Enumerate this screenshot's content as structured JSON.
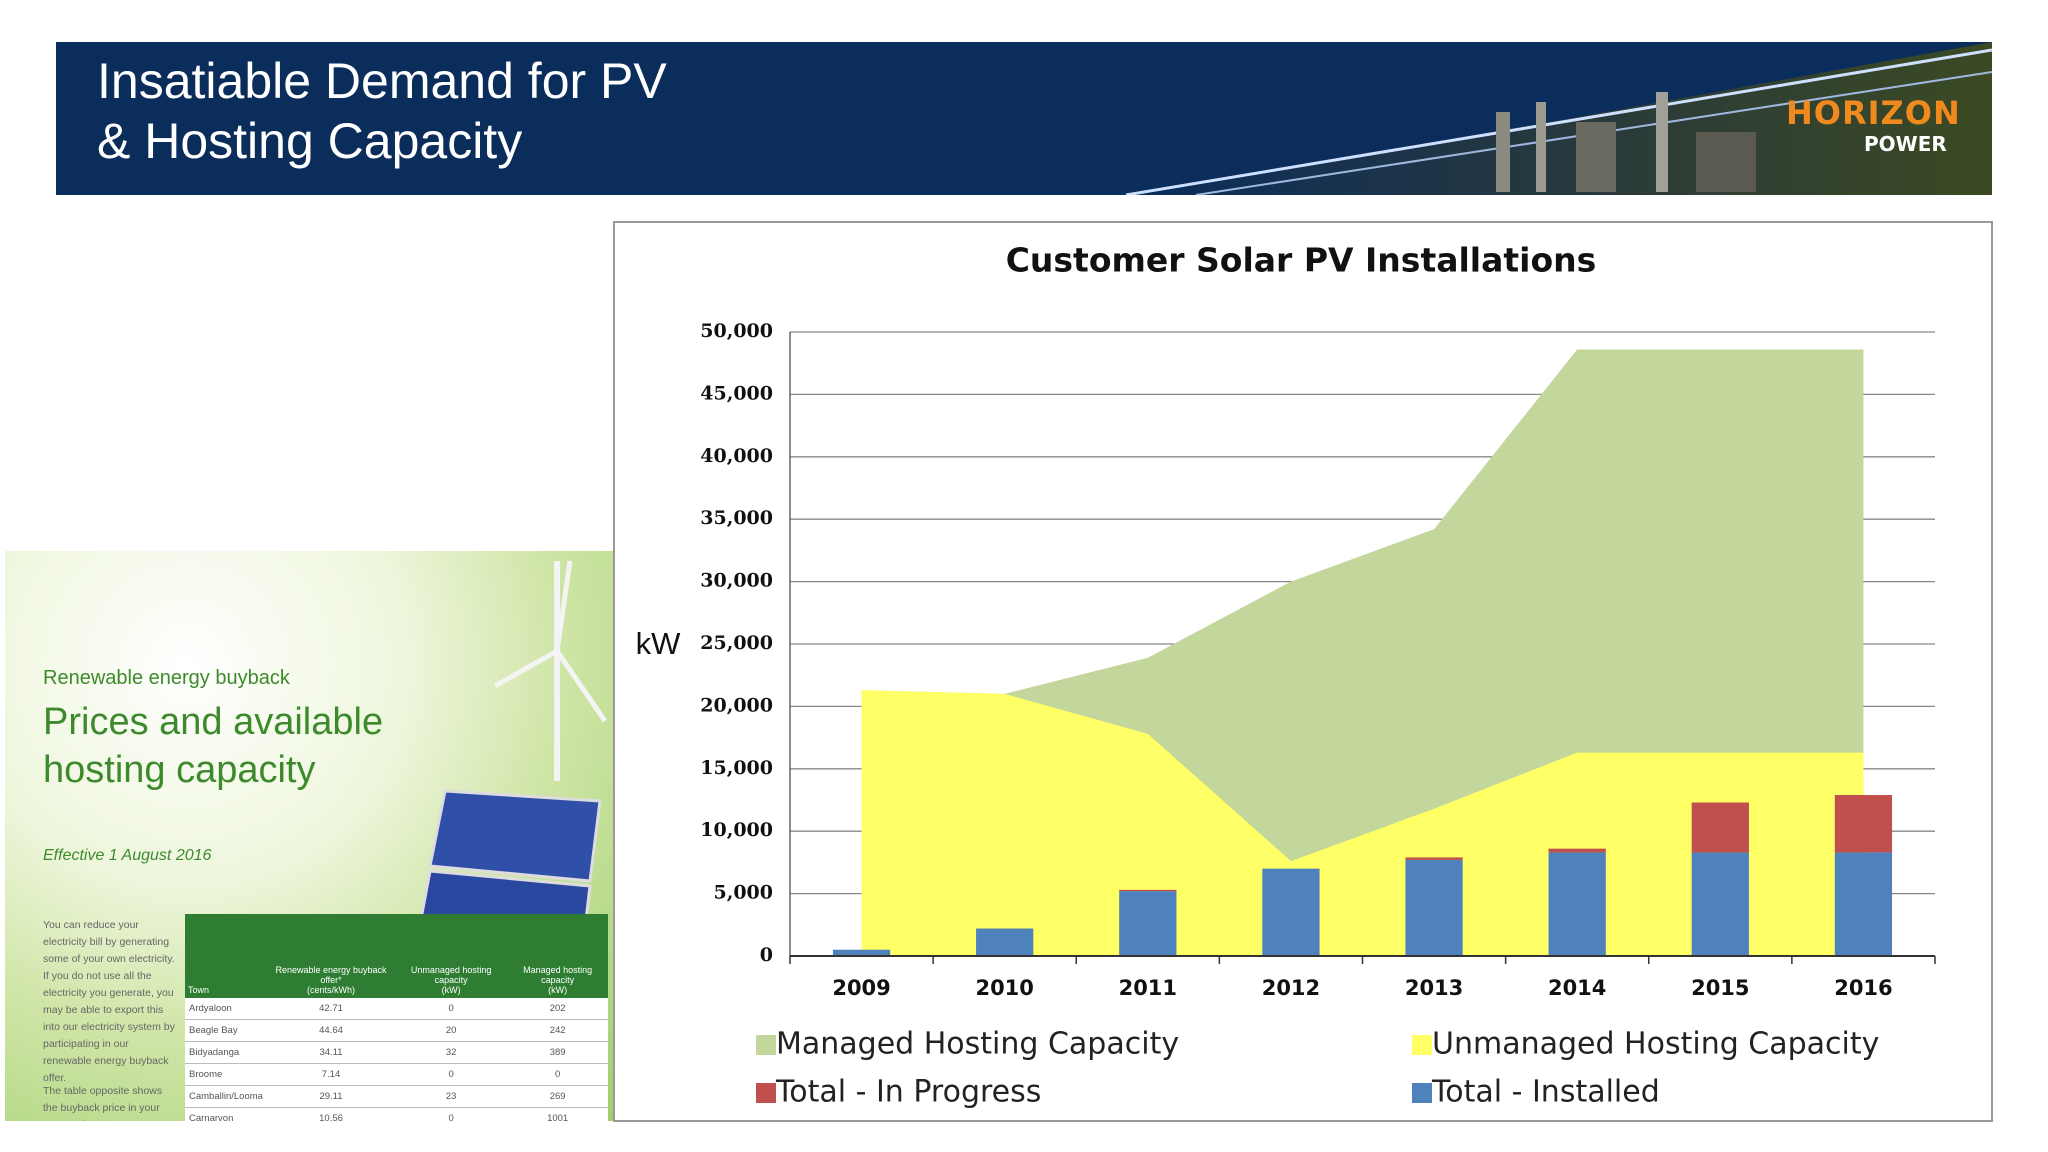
{
  "header": {
    "title_lines": [
      "Insatiable Demand for PV",
      "& Hosting Capacity"
    ],
    "logo": [
      "HORIZON",
      "POWER"
    ]
  },
  "brochure": {
    "kicker": "Renewable energy buyback",
    "heading_lines": [
      "Prices and available",
      "hosting capacity"
    ],
    "effective": "Effective 1 August 2016",
    "body": [
      "You can reduce your electricity bill by generating some of your own electricity. If you do not use all the electricity you generate, you may be able to export this into our electricity system by participating in our renewable energy buyback offer.",
      "The table opposite shows the buyback price in your town and"
    ],
    "table": {
      "columns": [
        "Town",
        "Renewable energy buyback offer*",
        "Unmanaged hosting capacity",
        "Managed hosting capacity"
      ],
      "units": [
        "(cents/kWh)",
        "(kW)",
        "(kW)"
      ],
      "rows": [
        [
          "Ardyaloon",
          "42.71",
          "0",
          "202"
        ],
        [
          "Beagle Bay",
          "44.64",
          "20",
          "242"
        ],
        [
          "Bidyadanga",
          "34.11",
          "32",
          "389"
        ],
        [
          "Broome",
          "7.14",
          "0",
          "0"
        ],
        [
          "Camballin/Looma",
          "29.11",
          "23",
          "269"
        ],
        [
          "Carnarvon",
          "10.56",
          "0",
          "1001"
        ]
      ]
    }
  },
  "chart_data": {
    "type": "combo",
    "title": "Customer Solar PV Installations",
    "y_label": "kW",
    "categories": [
      "2009",
      "2010",
      "2011",
      "2012",
      "2013",
      "2014",
      "2015",
      "2016"
    ],
    "series": [
      {
        "name": "Managed Hosting Capacity",
        "type": "area",
        "color": "#c3d69b",
        "values": [
          21300,
          21000,
          23900,
          30000,
          34200,
          48600,
          48600,
          48600
        ]
      },
      {
        "name": "Unmanaged Hosting Capacity",
        "type": "area",
        "color": "#ffff66",
        "values": [
          21300,
          21000,
          17800,
          7600,
          11800,
          16300,
          16300,
          16300
        ]
      },
      {
        "name": "Total - In Progress",
        "type": "bar",
        "color": "#c0504d",
        "values": [
          0,
          0,
          100,
          0,
          200,
          300,
          4000,
          4600
        ]
      },
      {
        "name": "Total - Installed",
        "type": "bar",
        "color": "#4f81bd",
        "values": [
          500,
          2200,
          5200,
          7000,
          7700,
          8300,
          8300,
          8300
        ]
      }
    ],
    "ylim": [
      0,
      50000
    ],
    "yticks": [
      0,
      {
        "value": 5000,
        "label": "5,000"
      },
      {
        "value": 10000,
        "label": "10,000"
      },
      {
        "value": 15000,
        "label": "15,000"
      },
      {
        "value": 20000,
        "label": "20,000"
      },
      {
        "value": 25000,
        "label": "25,000"
      },
      {
        "value": 30000,
        "label": "30,000"
      },
      {
        "value": 35000,
        "label": "35,000"
      },
      {
        "value": 40000,
        "label": "40,000"
      },
      {
        "value": 45000,
        "label": "45,000"
      },
      {
        "value": 50000,
        "label": "50,000"
      }
    ],
    "grid": true,
    "legend": "bottom"
  }
}
